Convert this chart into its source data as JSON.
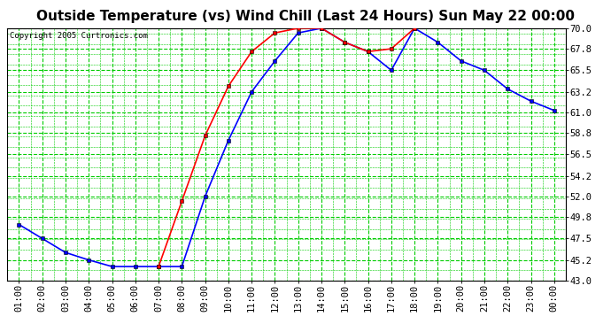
{
  "title": "Outside Temperature (vs) Wind Chill (Last 24 Hours) Sun May 22 00:00",
  "copyright": "Copyright 2005 Curtronics.com",
  "background_color": "#ffffff",
  "grid_color": "#00cc00",
  "x_labels": [
    "01:00",
    "02:00",
    "03:00",
    "04:00",
    "05:00",
    "06:00",
    "07:00",
    "08:00",
    "09:00",
    "10:00",
    "11:00",
    "12:00",
    "13:00",
    "14:00",
    "15:00",
    "16:00",
    "17:00",
    "18:00",
    "19:00",
    "20:00",
    "21:00",
    "22:00",
    "23:00",
    "00:00"
  ],
  "y_ticks": [
    43.0,
    45.2,
    47.5,
    49.8,
    52.0,
    54.2,
    56.5,
    58.8,
    61.0,
    63.2,
    65.5,
    67.8,
    70.0
  ],
  "ylim": [
    43.0,
    70.0
  ],
  "blue_data": [
    49.0,
    47.5,
    46.0,
    45.2,
    44.5,
    44.5,
    44.5,
    44.5,
    52.0,
    58.0,
    63.2,
    66.5,
    69.5,
    70.0,
    68.5,
    67.5,
    65.5,
    70.0,
    68.5,
    66.5,
    65.5,
    63.5,
    62.2,
    61.2
  ],
  "red_data": [
    null,
    null,
    null,
    null,
    null,
    null,
    44.5,
    51.5,
    58.5,
    63.8,
    67.5,
    69.5,
    70.0,
    70.0,
    68.5,
    67.5,
    67.8,
    70.0,
    null,
    null,
    null,
    null,
    null,
    null
  ],
  "blue_color": "#0000ff",
  "red_color": "#ff0000",
  "line_width": 1.2,
  "marker_size": 3.5,
  "title_fontsize": 11,
  "tick_fontsize": 7.5
}
